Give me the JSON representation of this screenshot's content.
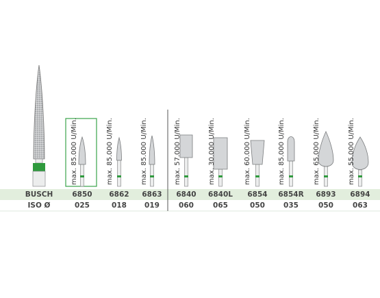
{
  "table": {
    "row_labels": [
      "BUSCH",
      "ISO Ø"
    ],
    "columns": [
      {
        "speed": "max. 85.000 U/Min.",
        "busch": "6850",
        "iso": "025"
      },
      {
        "speed": "max. 85.000 U/Min.",
        "busch": "6862",
        "iso": "018"
      },
      {
        "speed": "max. 85.000 U/Min.",
        "busch": "6863",
        "iso": "019"
      },
      {
        "speed": "max. 57.000 U/Min.",
        "busch": "6840",
        "iso": "060"
      },
      {
        "speed": "max. 30.000 U/Min.",
        "busch": "6840L",
        "iso": "065"
      },
      {
        "speed": "max. 60.000 U/Min.",
        "busch": "6854",
        "iso": "050"
      },
      {
        "speed": "max. 85.000 U/Min.",
        "busch": "6854R",
        "iso": "035"
      },
      {
        "speed": "max. 65.000 U/Min.",
        "busch": "6893",
        "iso": "050"
      },
      {
        "speed": "max. 55.000 U/Min.",
        "busch": "6894",
        "iso": "063"
      }
    ]
  }
}
